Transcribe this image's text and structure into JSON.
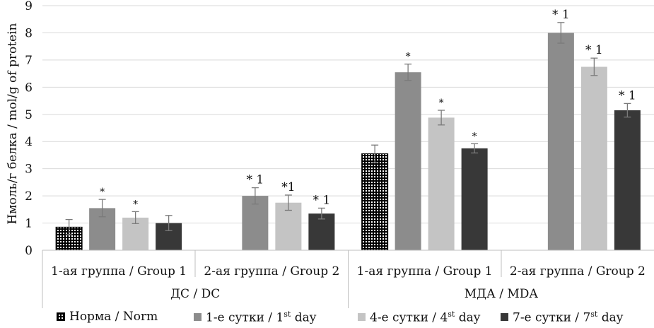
{
  "chart_data": {
    "type": "bar",
    "ylabel": "Нмоль/г белка / mol/g of protein",
    "ylim": [
      0,
      9
    ],
    "yticks": [
      "0",
      "1",
      "2",
      "3",
      "4",
      "5",
      "6",
      "7",
      "8",
      "9"
    ],
    "grid": true,
    "sections": [
      {
        "label": "ДС / DC",
        "groups": [
          "1-ая группа / Group 1",
          "2-ая группа / Group 2"
        ]
      },
      {
        "label": "МДА / MDA",
        "groups": [
          "1-ая группа / Group 1",
          "2-ая группа / Group 2"
        ]
      }
    ],
    "categories": [
      "1-ая группа / Group 1",
      "2-ая группа / Group 2",
      "1-ая группа / Group 1",
      "2-ая группа / Group 2"
    ],
    "series": [
      {
        "name": "Норма / Norm",
        "color": "#111111",
        "pattern": "dots",
        "values": [
          0.85,
          null,
          3.55,
          null
        ],
        "errors": [
          0.28,
          null,
          0.32,
          null
        ],
        "annotations": [
          "",
          "",
          "",
          ""
        ]
      },
      {
        "name": "1-е сутки / 1st day",
        "name_main": "1-е сутки / 1",
        "name_sup": "st",
        "name_end": " day",
        "color": "#8c8c8c",
        "values": [
          1.55,
          2.0,
          6.55,
          8.0
        ],
        "errors": [
          0.32,
          0.3,
          0.3,
          0.38
        ],
        "annotations": [
          "*",
          "* 1",
          "*",
          "* 1"
        ]
      },
      {
        "name": "4-е сутки / 4st day",
        "name_main": "4-е сутки / 4",
        "name_sup": "st",
        "name_end": " day",
        "color": "#c4c4c4",
        "values": [
          1.2,
          1.75,
          4.88,
          6.75
        ],
        "errors": [
          0.22,
          0.28,
          0.27,
          0.32
        ],
        "annotations": [
          "*",
          "*1",
          "*",
          "* 1"
        ]
      },
      {
        "name": "7-е сутки / 7st day",
        "name_main": "7-е сутки / 7",
        "name_sup": "st",
        "name_end": " day",
        "color": "#383838",
        "values": [
          1.0,
          1.35,
          3.75,
          5.15
        ],
        "errors": [
          0.28,
          0.2,
          0.17,
          0.25
        ],
        "annotations": [
          "",
          "* 1",
          "*",
          "* 1"
        ]
      }
    ],
    "legend": "bottom",
    "legend_labels": [
      "Норма / Norm",
      "1-е сутки / 1st day",
      "4-е сутки / 4st day",
      "7-е сутки / 7st day"
    ]
  }
}
